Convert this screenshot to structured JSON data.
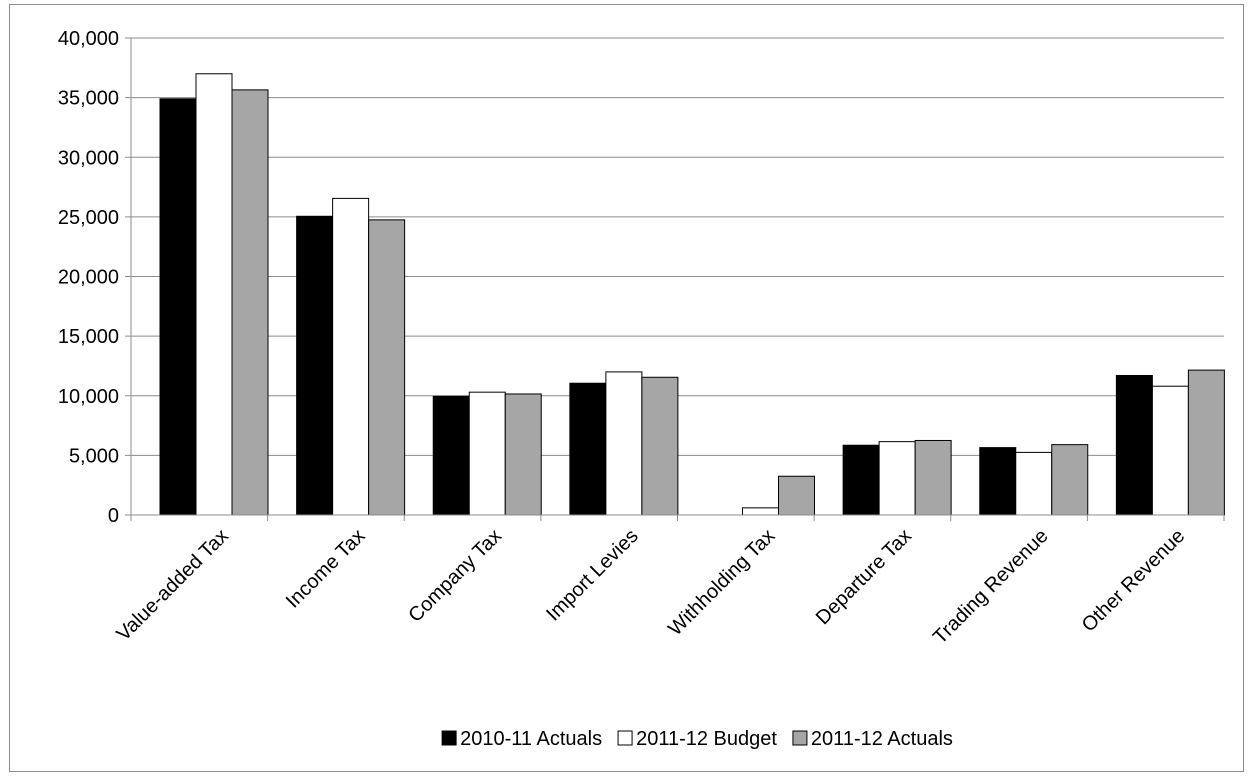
{
  "chart_data": {
    "type": "bar",
    "title": "",
    "xlabel": "",
    "ylabel": "",
    "categories": [
      "Value-added Tax",
      "Income Tax",
      "Company Tax",
      "Import Levies",
      "Withholding Tax",
      "Departure Tax",
      "Trading Revenue",
      "Other Revenue"
    ],
    "series": [
      {
        "name": "2010-11 Actuals",
        "color": "#000000",
        "values": [
          34900,
          25050,
          9950,
          11050,
          0,
          5850,
          5650,
          11700
        ]
      },
      {
        "name": "2011-12 Budget",
        "color": "#ffffff",
        "values": [
          37000,
          26550,
          10300,
          12000,
          600,
          6150,
          5250,
          10800
        ]
      },
      {
        "name": "2011-12 Actuals",
        "color": "#a6a6a6",
        "values": [
          35650,
          24750,
          10150,
          11550,
          3250,
          6250,
          5900,
          12150
        ]
      }
    ],
    "ylim": [
      0,
      40000
    ],
    "yticks": [
      0,
      5000,
      10000,
      15000,
      20000,
      25000,
      30000,
      35000,
      40000
    ],
    "ytick_labels": [
      "0",
      "5,000",
      "10,000",
      "15,000",
      "20,000",
      "25,000",
      "30,000",
      "35,000",
      "40,000"
    ],
    "grid": true,
    "legend_position": "bottom"
  }
}
